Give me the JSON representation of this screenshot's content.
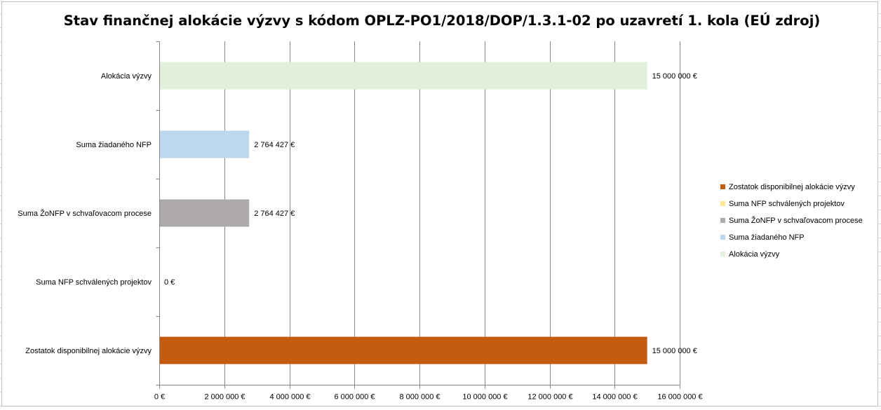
{
  "chart_data": {
    "type": "bar",
    "orientation": "horizontal",
    "title": "Stav finančnej alokácie výzvy s kódom OPLZ-PO1/2018/DOP/1.3.1-02 po uzavretí 1. kola (EÚ zdroj)",
    "xlabel": "",
    "ylabel": "",
    "xlim": [
      0,
      16000000
    ],
    "grid": "vertical",
    "legend_position": "right",
    "categories": [
      "Alokácia výzvy",
      "Suma žiadaného NFP",
      "Suma ŽoNFP v schvaľovacom procese",
      "Suma NFP schválených projektov",
      "Zostatok disponibilnej alokácie výzvy"
    ],
    "values": [
      15000000,
      2764427,
      2764427,
      0,
      15000000
    ],
    "value_labels": [
      "15 000 000 €",
      "2 764 427 €",
      "2 764 427 €",
      "0 €",
      "15 000 000 €"
    ],
    "colors": [
      "#e2efda",
      "#bdd7ee",
      "#aeaaaa",
      "#ffe699",
      "#c55a11"
    ],
    "x_ticks": [
      0,
      2000000,
      4000000,
      6000000,
      8000000,
      10000000,
      12000000,
      14000000,
      16000000
    ],
    "x_tick_labels": [
      "0 €",
      "2 000 000 €",
      "4 000 000 €",
      "6 000 000 €",
      "8 000 000 €",
      "10 000 000 €",
      "12 000 000 €",
      "14 000 000 €",
      "16 000 000 €"
    ],
    "legend": [
      {
        "label": "Zostatok disponibilnej alokácie výzvy",
        "color": "#c55a11"
      },
      {
        "label": "Suma NFP schválených projektov",
        "color": "#ffe699"
      },
      {
        "label": "Suma ŽoNFP v schvaľovacom procese",
        "color": "#aeaaaa"
      },
      {
        "label": "Suma žiadaného NFP",
        "color": "#bdd7ee"
      },
      {
        "label": "Alokácia výzvy",
        "color": "#e2efda"
      }
    ]
  }
}
